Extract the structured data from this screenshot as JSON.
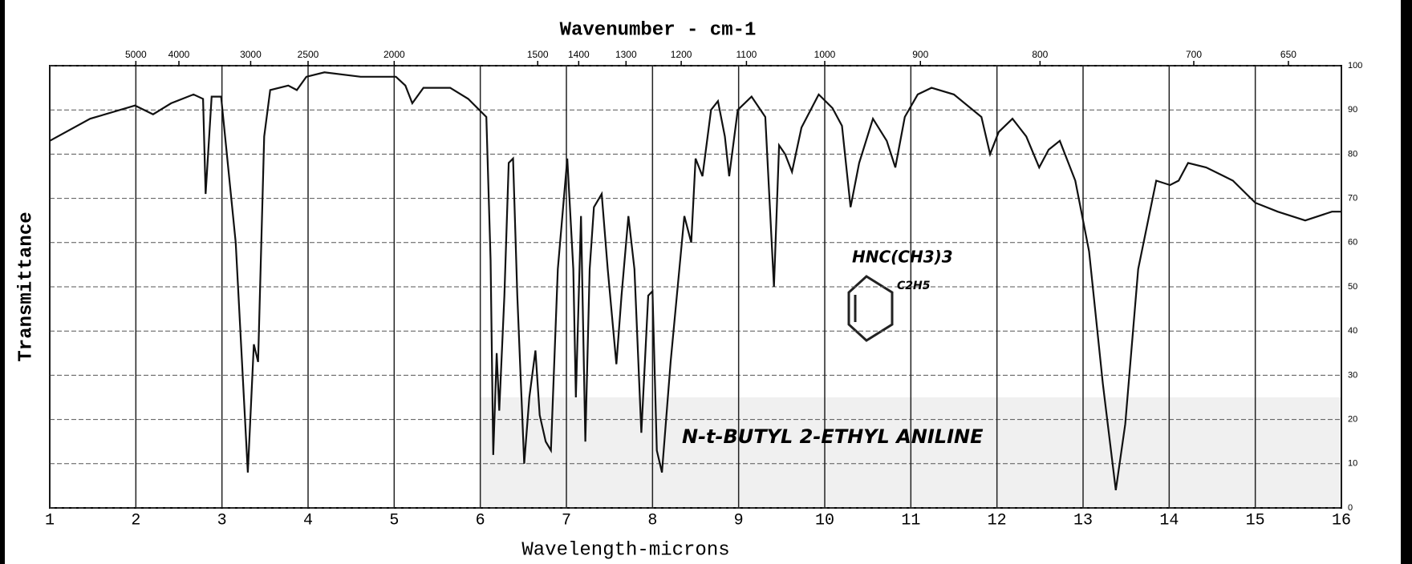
{
  "chart_data": {
    "type": "line",
    "title": "Wavenumber - cm-1",
    "xlabel": "Wavelength-microns",
    "ylabel": "Transmittance",
    "color": "#111111",
    "grid": true,
    "xlim": [
      1,
      16
    ],
    "xticks": [
      1,
      2,
      3,
      4,
      5,
      6,
      7,
      8,
      9,
      10,
      11,
      12,
      13,
      14,
      15,
      16
    ],
    "ylim": [
      0,
      100
    ],
    "yticks": [
      0,
      10,
      20,
      30,
      40,
      50,
      60,
      70,
      80,
      90,
      100
    ],
    "x2ticks": [
      5000,
      4000,
      3000,
      2500,
      2000,
      1500,
      1400,
      1300,
      1200,
      1100,
      1000,
      900,
      800,
      700,
      650
    ],
    "annotations": [
      "N-t-BUTYL 2-ETHYL ANILINE",
      "HNC(CH3)3",
      "C2H5"
    ],
    "x": [
      1.0,
      1.47,
      1.99,
      2.2,
      2.41,
      2.67,
      2.78,
      2.81,
      2.88,
      2.99,
      3.16,
      3.3,
      3.37,
      3.42,
      3.49,
      3.56,
      3.77,
      3.87,
      3.98,
      4.19,
      4.61,
      5.02,
      5.13,
      5.21,
      5.34,
      5.65,
      5.86,
      6.07,
      6.12,
      6.15,
      6.19,
      6.22,
      6.28,
      6.33,
      6.38,
      6.43,
      6.51,
      6.57,
      6.64,
      6.69,
      6.76,
      6.82,
      6.9,
      7.01,
      7.08,
      7.11,
      7.17,
      7.22,
      7.27,
      7.32,
      7.41,
      7.48,
      7.58,
      7.64,
      7.72,
      7.79,
      7.87,
      7.95,
      8.0,
      8.05,
      8.11,
      8.21,
      8.37,
      8.45,
      8.5,
      8.58,
      8.68,
      8.76,
      8.84,
      8.89,
      8.99,
      9.15,
      9.31,
      9.41,
      9.47,
      9.54,
      9.62,
      9.73,
      9.93,
      10.09,
      10.2,
      10.3,
      10.4,
      10.56,
      10.72,
      10.82,
      10.93,
      11.08,
      11.24,
      11.5,
      11.82,
      11.92,
      12.02,
      12.18,
      12.34,
      12.49,
      12.6,
      12.73,
      12.91,
      13.07,
      13.23,
      13.38,
      13.49,
      13.64,
      13.85,
      14.01,
      14.11,
      14.22,
      14.43,
      14.74,
      15.0,
      15.26,
      15.58,
      15.89,
      16.0
    ],
    "values": [
      83,
      88,
      91,
      89,
      91.5,
      93.5,
      92.5,
      71,
      93,
      93,
      60,
      8,
      37,
      33,
      84,
      94.5,
      95.5,
      94.5,
      97.5,
      98.5,
      97.5,
      97.5,
      95.5,
      91.5,
      95,
      95,
      92.5,
      88.4,
      56,
      12,
      35,
      22,
      48,
      78,
      79,
      48,
      10,
      25,
      35.6,
      21,
      15,
      13,
      54,
      79,
      54,
      25,
      66,
      15,
      54,
      68,
      71,
      54,
      32.5,
      48,
      66,
      54,
      17,
      48,
      49,
      13,
      8,
      33,
      66,
      60,
      79,
      75,
      90,
      92,
      84,
      75,
      90,
      93,
      88.4,
      50,
      82,
      80,
      76,
      86,
      93.5,
      90.4,
      86.4,
      68,
      78,
      88,
      83,
      77,
      88.4,
      93.5,
      95,
      93.5,
      88.4,
      80,
      85,
      88,
      84,
      77,
      81,
      83,
      74,
      58,
      28,
      4,
      19,
      54,
      74,
      73,
      74,
      78,
      77,
      74,
      69,
      67,
      65,
      67,
      67
    ]
  }
}
